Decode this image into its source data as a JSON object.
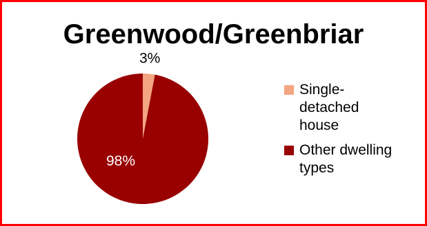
{
  "chart_data": {
    "type": "pie",
    "title": "Greenwood/Greenbriar",
    "slices": [
      {
        "label": "Single-detached house",
        "legend_lines": [
          "Single-",
          "detached",
          "house"
        ],
        "value": 3,
        "display": "3%",
        "color": "#f4a582"
      },
      {
        "label": "Other dwelling types",
        "legend_lines": [
          "Other dwelling",
          "types"
        ],
        "value": 98,
        "display": "98%",
        "color": "#990000"
      }
    ],
    "legend_position": "right"
  },
  "colors": {
    "border": "#ff0000",
    "background": "#ffffff"
  }
}
